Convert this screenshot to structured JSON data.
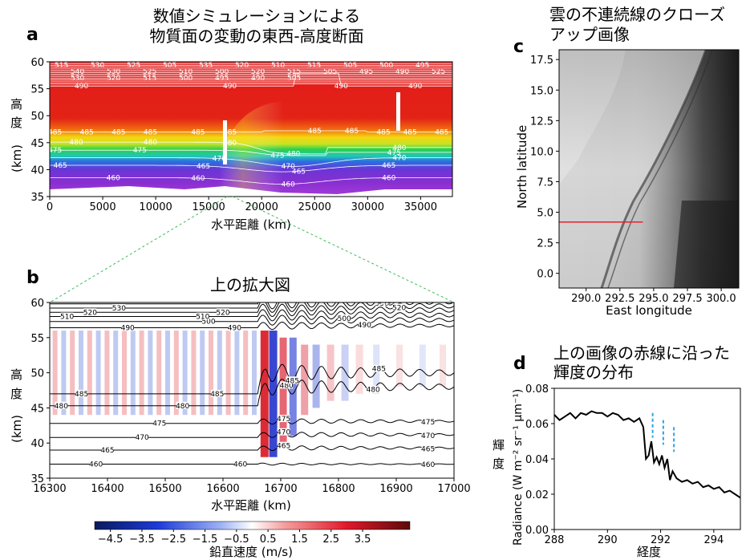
{
  "panel_a": {
    "letter": "a",
    "title_line1": "数値シミュレーションによる",
    "title_line2": "物質面の変動の東西-高度断面",
    "xlabel": "水平距離 (km)",
    "ylabel_chars": [
      "高",
      "度",
      "(km)"
    ]
  },
  "panel_b": {
    "letter": "b",
    "title": "上の拡大図",
    "xlabel": "水平距離 (km)",
    "ylabel_chars": [
      "高",
      "度",
      "(km)"
    ],
    "colorbar_label": "鉛直速度 (m/s)"
  },
  "panel_c": {
    "letter": "c",
    "title_line1": "雲の不連続線のクローズ",
    "title_line2": "アップ画像",
    "xlabel": "East longitude",
    "ylabel": "North latitude"
  },
  "panel_d": {
    "letter": "d",
    "title_line1": "上の画像の赤線に沿った",
    "title_line2": "輝度の分布",
    "xlabel": "経度",
    "ylabel_jp": [
      "輝",
      "度"
    ],
    "ylabel": "Radiance (W m⁻² sr⁻¹ μm⁻¹)"
  },
  "colors": {
    "dashed_marks": "#29a3e8",
    "red_line": "#e8202a",
    "zoom_lines": "#3dbb5a"
  },
  "chart_data": [
    {
      "type": "heatmap",
      "id": "a",
      "title": "数値シミュレーションによる 物質面の変動の東西-高度断面",
      "xlabel": "水平距離 (km)",
      "ylabel": "高度 (km)",
      "xlim": [
        0,
        38000
      ],
      "ylim": [
        35,
        60
      ],
      "xticks": [
        0,
        5000,
        10000,
        15000,
        20000,
        25000,
        30000,
        35000
      ],
      "yticks": [
        35,
        40,
        45,
        50,
        55,
        60
      ],
      "contours": [
        {
          "level": "460",
          "labels_x": [
            6000,
            14000,
            22500,
            32000
          ]
        },
        {
          "level": "465",
          "labels_x": [
            1000,
            14500,
            23500,
            32000
          ]
        },
        {
          "level": "470",
          "labels_x": [
            16000,
            22500,
            33000
          ]
        },
        {
          "level": "475",
          "labels_x": [
            500,
            8500,
            21500,
            32500
          ]
        },
        {
          "level": "480",
          "labels_x": [
            2500,
            9500,
            17000,
            23000,
            33000
          ]
        },
        {
          "level": "485",
          "labels_x": [
            500,
            3500,
            6500,
            9500,
            14000,
            17000,
            25000,
            28500,
            31500,
            34000,
            37000
          ]
        },
        {
          "level": "490",
          "labels_x": [
            3000,
            17000,
            27500,
            34500
          ]
        }
      ],
      "top_labels": [
        "515",
        "530",
        "525",
        "505",
        "535",
        "520",
        "510",
        "515",
        "505",
        "500",
        "495",
        "540",
        "530",
        "525",
        "510",
        "500",
        "520",
        "515",
        "505",
        "495",
        "490",
        "525",
        "530",
        "520",
        "515",
        "500",
        "495",
        "490",
        "505"
      ]
    },
    {
      "type": "heatmap",
      "id": "b",
      "title": "上の拡大図",
      "xlabel": "水平距離 (km)",
      "ylabel": "高度 (km)",
      "xlim": [
        16300,
        17000
      ],
      "ylim": [
        35,
        60
      ],
      "xticks": [
        16300,
        16400,
        16500,
        16600,
        16700,
        16800,
        16900,
        17000
      ],
      "yticks": [
        35,
        40,
        45,
        50,
        55,
        60
      ],
      "colorbar": {
        "label": "鉛直速度 (m/s)",
        "range": [
          -5,
          5
        ],
        "ticks": [
          "−4.5",
          "−3.5",
          "−2.5",
          "−1.5",
          "−0.5",
          "0.5",
          "1.5",
          "2.5",
          "3.5"
        ]
      },
      "contour_levels": [
        "460",
        "465",
        "470",
        "475",
        "480",
        "485",
        "490",
        "500",
        "510",
        "520",
        "530",
        "540"
      ]
    },
    {
      "type": "heatmap",
      "id": "c",
      "title": "雲の不連続線のクローズ アップ画像",
      "xlabel": "East longitude",
      "ylabel": "North latitude",
      "xlim": [
        288,
        301.3
      ],
      "ylim": [
        -1.2,
        18.3
      ],
      "xticks": [
        "290.0",
        "292.5",
        "295.0",
        "297.5",
        "300.0"
      ],
      "yticks": [
        "0.0",
        "2.5",
        "5.0",
        "7.5",
        "10.0",
        "12.5",
        "15.0",
        "17.5"
      ],
      "red_line": {
        "x": [
          288,
          294.2
        ],
        "y": 4.2
      }
    },
    {
      "type": "line",
      "id": "d",
      "title": "上の画像の赤線に沿った 輝度の分布",
      "xlabel": "経度",
      "ylabel": "Radiance (W m⁻² sr⁻¹ μm⁻¹)",
      "xlim": [
        288,
        295
      ],
      "ylim": [
        0.0,
        0.08
      ],
      "xticks": [
        "288",
        "290",
        "292",
        "294"
      ],
      "yticks": [
        "0.00",
        "0.02",
        "0.04",
        "0.06",
        "0.08"
      ],
      "x": [
        288.0,
        288.2,
        288.4,
        288.6,
        288.8,
        289.0,
        289.2,
        289.4,
        289.6,
        289.8,
        290.0,
        290.2,
        290.4,
        290.6,
        290.8,
        291.0,
        291.2,
        291.35,
        291.45,
        291.55,
        291.65,
        291.75,
        291.85,
        291.95,
        292.05,
        292.15,
        292.25,
        292.35,
        292.45,
        292.6,
        292.8,
        293.0,
        293.2,
        293.4,
        293.6,
        293.8,
        294.0,
        294.2,
        294.4,
        294.6,
        294.8,
        295.0
      ],
      "values": [
        0.065,
        0.062,
        0.064,
        0.066,
        0.063,
        0.066,
        0.065,
        0.067,
        0.066,
        0.066,
        0.064,
        0.066,
        0.065,
        0.062,
        0.063,
        0.061,
        0.063,
        0.058,
        0.04,
        0.042,
        0.05,
        0.038,
        0.041,
        0.037,
        0.042,
        0.035,
        0.04,
        0.028,
        0.033,
        0.029,
        0.027,
        0.028,
        0.026,
        0.027,
        0.024,
        0.025,
        0.023,
        0.024,
        0.021,
        0.022,
        0.02,
        0.018
      ],
      "dashed_markers_x": [
        291.7,
        292.1,
        292.5
      ]
    }
  ]
}
